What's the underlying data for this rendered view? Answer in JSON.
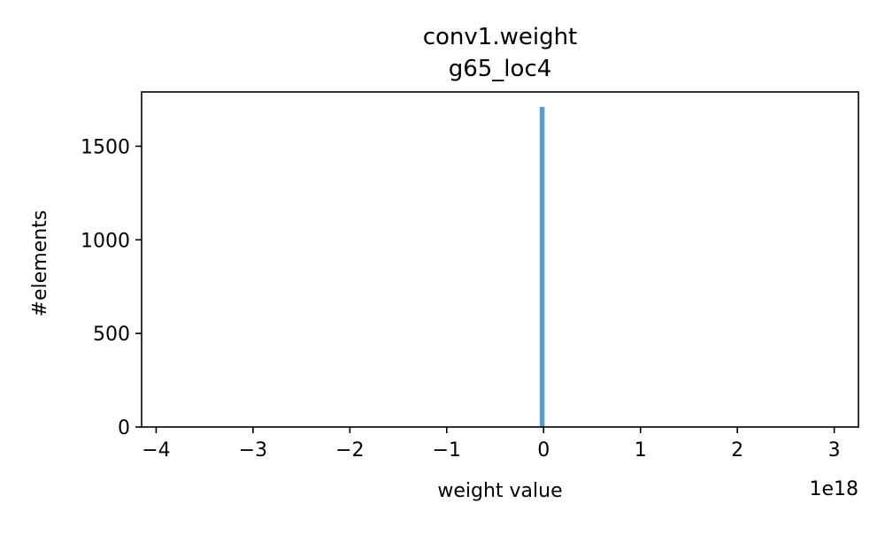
{
  "chart_data": {
    "type": "bar",
    "title": "conv1.weight",
    "subtitle": "g65_loc4",
    "xlabel": "weight value",
    "ylabel": "#elements",
    "x_offset_label": "1e18",
    "x_scale": 1e+18,
    "xlim": [
      -4.15,
      3.25
    ],
    "ylim": [
      0,
      1790
    ],
    "xticks": [
      -4,
      -3,
      -2,
      -1,
      0,
      1,
      2,
      3
    ],
    "xtick_labels": [
      "−4",
      "−3",
      "−2",
      "−1",
      "0",
      "1",
      "2",
      "3"
    ],
    "yticks": [
      0,
      500,
      1000,
      1500
    ],
    "ytick_labels": [
      "0",
      "500",
      "1000",
      "1500"
    ],
    "bars": [
      {
        "x_start": -0.04,
        "x_end": 0.01,
        "value": 1710
      }
    ],
    "bar_color": "#5b9bc6",
    "grid": false,
    "legend": "none"
  }
}
